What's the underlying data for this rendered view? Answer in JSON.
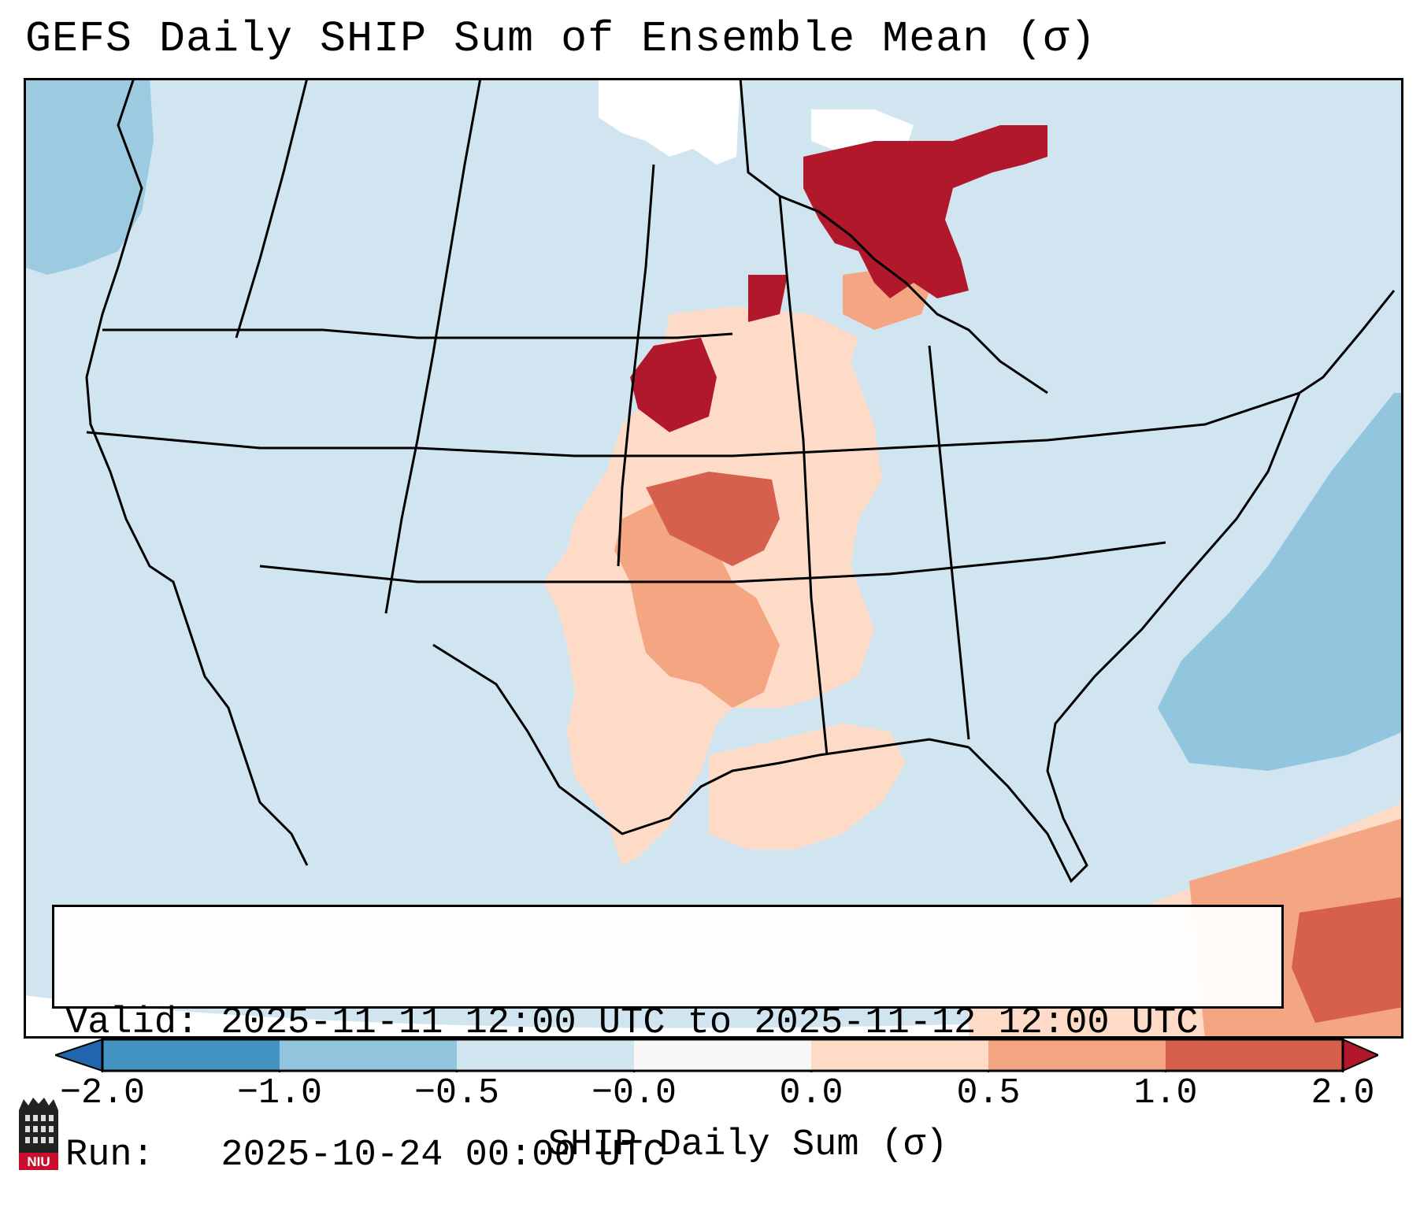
{
  "title": "GEFS Daily SHIP Sum of Ensemble Mean (σ)",
  "info": {
    "valid_line": "Valid: 2025-11-11 12:00 UTC to 2025-11-12 12:00 UTC",
    "run_line": "Run:   2025-10-24 00:00 UTC"
  },
  "colorbar": {
    "label": "SHIP Daily Sum (σ)",
    "tick_labels": [
      "−2.0",
      "−1.0",
      "−0.5",
      "−0.0",
      "0.0",
      "0.5",
      "1.0",
      "2.0"
    ],
    "bins": [
      {
        "range": "< -2.0",
        "color": "#2166ac"
      },
      {
        "range": "-2.0 to -1.0",
        "color": "#4393c3"
      },
      {
        "range": "-1.0 to -0.5",
        "color": "#92c5de"
      },
      {
        "range": "-0.5 to -0.0",
        "color": "#d1e5f0"
      },
      {
        "range": "-0.0 to 0.0",
        "color": "#f7f7f7"
      },
      {
        "range": "0.0 to 0.5",
        "color": "#fddbc7"
      },
      {
        "range": "0.5 to 1.0",
        "color": "#f4a582"
      },
      {
        "range": "1.0 to 2.0",
        "color": "#d6604d"
      },
      {
        "range": "> 2.0",
        "color": "#b2182b"
      }
    ]
  },
  "map": {
    "background_color": "#d1e5f0",
    "region": "Contiguous United States",
    "highlights": [
      {
        "area": "Upper Midwest / Lake Superior",
        "level": "> 2.0"
      },
      {
        "area": "Nebraska / Kansas",
        "level": "1.0 to > 2.0"
      },
      {
        "area": "Oklahoma / Texas / Arkansas",
        "level": "0.0 to 1.0"
      },
      {
        "area": "Caribbean / Bahamas",
        "level": "0.5 to 2.0"
      },
      {
        "area": "Western Atlantic",
        "level": "-1.0 to -0.5"
      }
    ]
  },
  "logo": {
    "text": "NIU"
  }
}
